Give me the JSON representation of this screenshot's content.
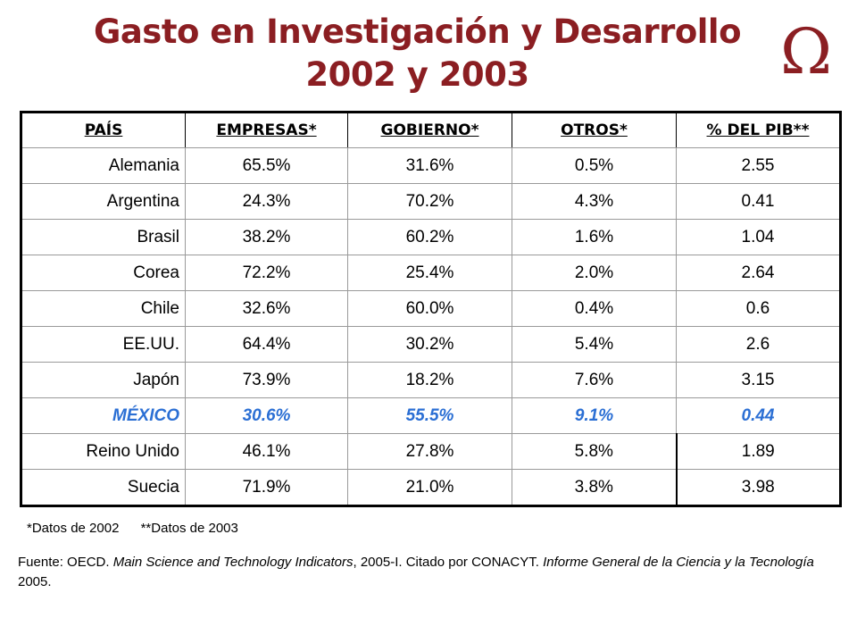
{
  "title": {
    "line1": "Gasto en Investigación y Desarrollo",
    "line2": "2002 y 2003"
  },
  "logo": {
    "glyph": "Ω",
    "icon": "omega-icon",
    "color": "#8b1e22"
  },
  "table": {
    "headers": [
      "PAÍS",
      "EMPRESAS*",
      "GOBIERNO*",
      "OTROS*",
      "% DEL PIB**"
    ],
    "rows": [
      [
        "Alemania",
        "65.5%",
        "31.6%",
        "0.5%",
        "2.55"
      ],
      [
        "Argentina",
        "24.3%",
        "70.2%",
        "4.3%",
        "0.41"
      ],
      [
        "Brasil",
        "38.2%",
        "60.2%",
        "1.6%",
        "1.04"
      ],
      [
        "Corea",
        "72.2%",
        "25.4%",
        "2.0%",
        "2.64"
      ],
      [
        "Chile",
        "32.6%",
        "60.0%",
        "0.4%",
        "0.6"
      ],
      [
        "EE.UU.",
        "64.4%",
        "30.2%",
        "5.4%",
        "2.6"
      ],
      [
        "Japón",
        "73.9%",
        "18.2%",
        "7.6%",
        "3.15"
      ],
      [
        "MÉXICO",
        "30.6%",
        "55.5%",
        "9.1%",
        "0.44"
      ],
      [
        "Reino Unido",
        "46.1%",
        "27.8%",
        "5.8%",
        "1.89"
      ],
      [
        "Suecia",
        "71.9%",
        "21.0%",
        "3.8%",
        "3.98"
      ]
    ],
    "highlight_color": "#2b6fd4"
  },
  "notes": {
    "note1": "*Datos de 2002",
    "note2": "**Datos de 2003"
  },
  "source": {
    "prefix": "Fuente: OECD. ",
    "work1": "Main Science and Technology Indicators",
    "middle": ", 2005-I. Citado por CONACYT. ",
    "work2": "Informe General de la Ciencia y la Tecnología",
    "suffix": " 2005."
  }
}
